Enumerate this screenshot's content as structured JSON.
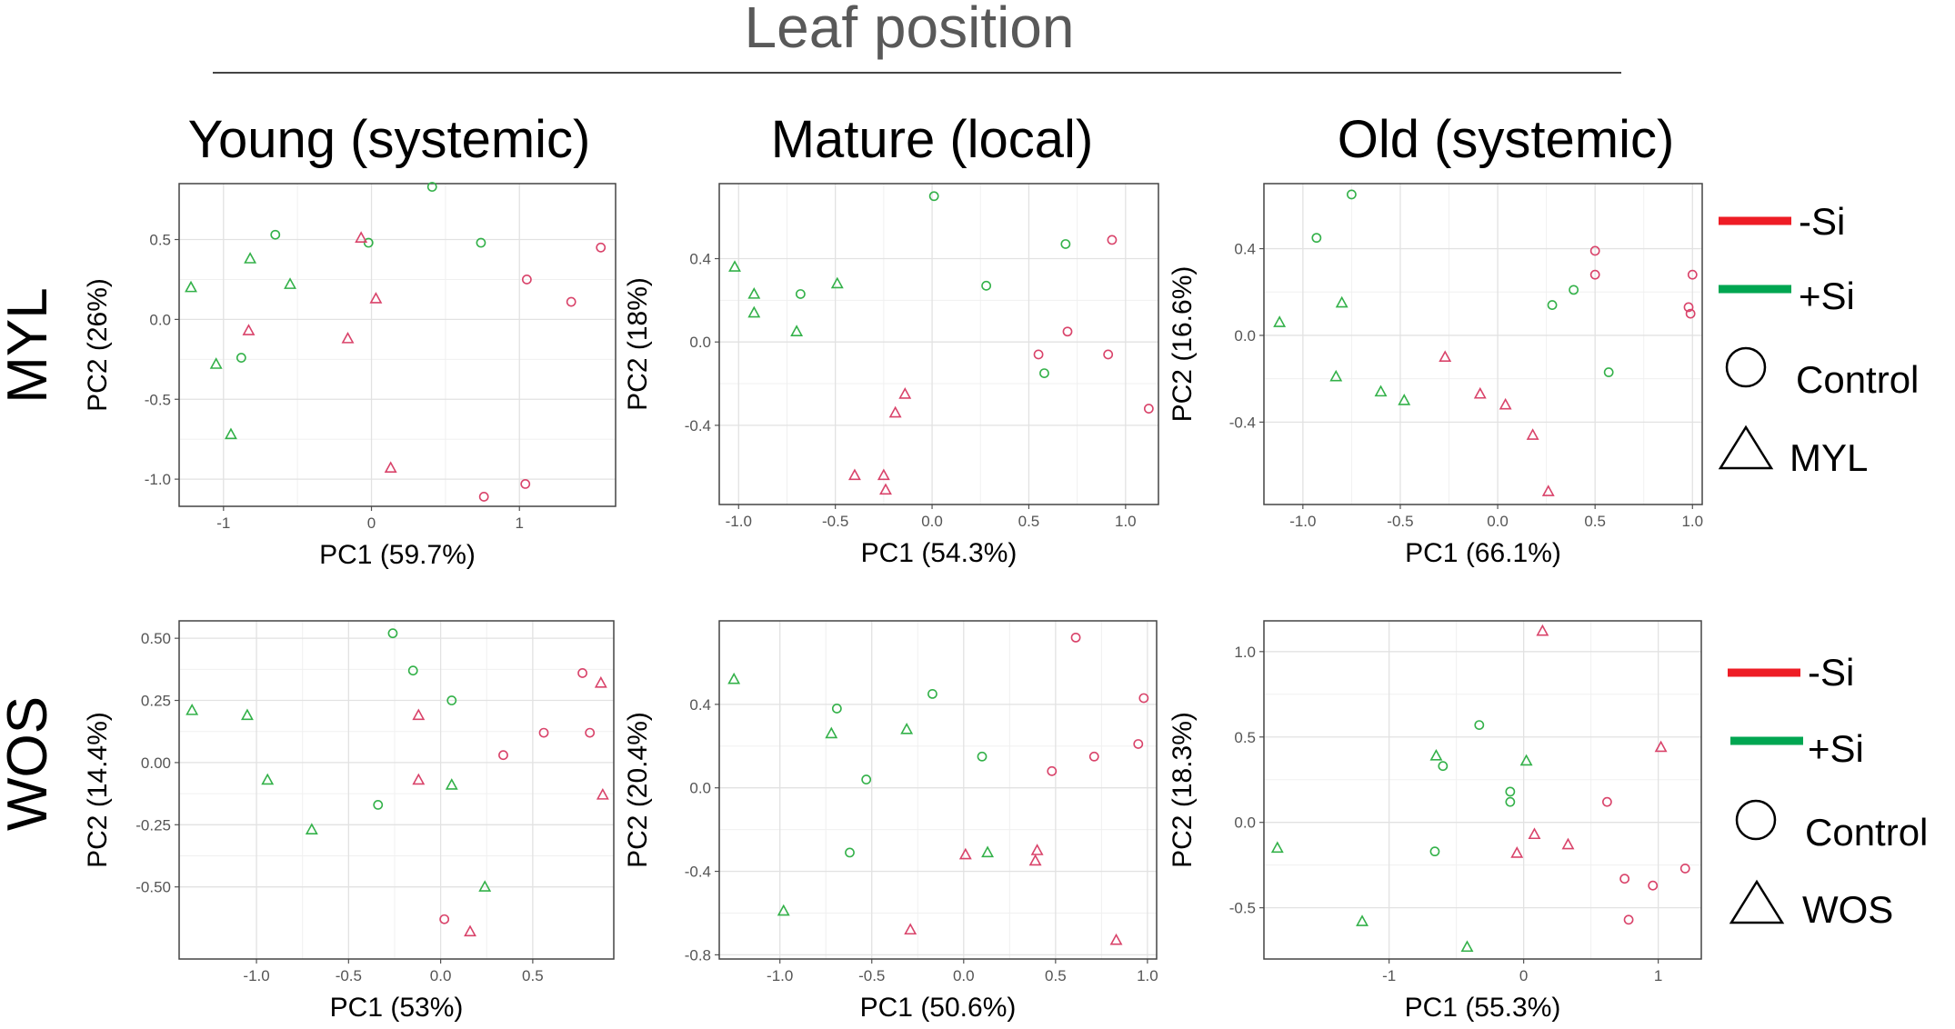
{
  "header": {
    "title": "Leaf position"
  },
  "columns": [
    "Young (systemic)",
    "Mature (local)",
    "Old (systemic)"
  ],
  "rows": [
    "MYL",
    "WOS"
  ],
  "colors": {
    "minus_si": "#d9436a",
    "plus_si": "#33b149",
    "legend_red": "#ee1c25",
    "legend_green": "#00a651",
    "title_gray": "#595959"
  },
  "legends": [
    {
      "minus_si": "-Si",
      "plus_si": "+Si",
      "circle_label": "Control",
      "triangle_label": "MYL"
    },
    {
      "minus_si": "-Si",
      "plus_si": "+Si",
      "circle_label": "Control",
      "triangle_label": "WOS"
    }
  ],
  "chart_data": [
    {
      "type": "scatter",
      "row": "MYL",
      "column": "Young (systemic)",
      "xlabel": "PC1 (59.7%)",
      "ylabel": "PC2 (26%)",
      "xlim": [
        -1.3,
        1.65
      ],
      "ylim": [
        -1.17,
        0.85
      ],
      "xticks": [
        -1,
        0,
        1
      ],
      "xticklabels": [
        "-1",
        "0",
        "1"
      ],
      "yticks": [
        -1.0,
        -0.5,
        0.0,
        0.5
      ],
      "yticklabels": [
        "-1.0",
        "-0.5",
        "0.0",
        "0.5"
      ],
      "points": [
        {
          "x": -1.22,
          "y": 0.2,
          "shape": "triangle",
          "treatment": "+Si"
        },
        {
          "x": -0.82,
          "y": 0.38,
          "shape": "triangle",
          "treatment": "+Si"
        },
        {
          "x": -0.65,
          "y": 0.53,
          "shape": "circle",
          "treatment": "+Si"
        },
        {
          "x": -0.55,
          "y": 0.22,
          "shape": "triangle",
          "treatment": "+Si"
        },
        {
          "x": -0.02,
          "y": 0.48,
          "shape": "circle",
          "treatment": "+Si"
        },
        {
          "x": 0.41,
          "y": 0.83,
          "shape": "circle",
          "treatment": "+Si"
        },
        {
          "x": 0.74,
          "y": 0.48,
          "shape": "circle",
          "treatment": "+Si"
        },
        {
          "x": -1.05,
          "y": -0.28,
          "shape": "triangle",
          "treatment": "+Si"
        },
        {
          "x": -0.88,
          "y": -0.24,
          "shape": "circle",
          "treatment": "+Si"
        },
        {
          "x": -0.95,
          "y": -0.72,
          "shape": "triangle",
          "treatment": "+Si"
        },
        {
          "x": -0.07,
          "y": 0.51,
          "shape": "triangle",
          "treatment": "-Si"
        },
        {
          "x": 0.03,
          "y": 0.13,
          "shape": "triangle",
          "treatment": "-Si"
        },
        {
          "x": -0.83,
          "y": -0.07,
          "shape": "triangle",
          "treatment": "-Si"
        },
        {
          "x": -0.16,
          "y": -0.12,
          "shape": "triangle",
          "treatment": "-Si"
        },
        {
          "x": 1.05,
          "y": 0.25,
          "shape": "circle",
          "treatment": "-Si"
        },
        {
          "x": 1.35,
          "y": 0.11,
          "shape": "circle",
          "treatment": "-Si"
        },
        {
          "x": 1.55,
          "y": 0.45,
          "shape": "circle",
          "treatment": "-Si"
        },
        {
          "x": 0.13,
          "y": -0.93,
          "shape": "triangle",
          "treatment": "-Si"
        },
        {
          "x": 0.76,
          "y": -1.11,
          "shape": "circle",
          "treatment": "-Si"
        },
        {
          "x": 1.04,
          "y": -1.03,
          "shape": "circle",
          "treatment": "-Si"
        }
      ]
    },
    {
      "type": "scatter",
      "row": "MYL",
      "column": "Mature (local)",
      "xlabel": "PC1 (54.3%)",
      "ylabel": "PC2 (18%)",
      "xlim": [
        -1.1,
        1.17
      ],
      "ylim": [
        -0.78,
        0.76
      ],
      "xticks": [
        -1.0,
        -0.5,
        0.0,
        0.5,
        1.0
      ],
      "xticklabels": [
        "-1.0",
        "-0.5",
        "0.0",
        "0.5",
        "1.0"
      ],
      "yticks": [
        -0.4,
        0.0,
        0.4
      ],
      "yticklabels": [
        "-0.4",
        "0.0",
        "0.4"
      ],
      "points": [
        {
          "x": -1.02,
          "y": 0.36,
          "shape": "triangle",
          "treatment": "+Si"
        },
        {
          "x": -0.92,
          "y": 0.23,
          "shape": "triangle",
          "treatment": "+Si"
        },
        {
          "x": -0.92,
          "y": 0.14,
          "shape": "triangle",
          "treatment": "+Si"
        },
        {
          "x": -0.68,
          "y": 0.23,
          "shape": "circle",
          "treatment": "+Si"
        },
        {
          "x": -0.7,
          "y": 0.05,
          "shape": "triangle",
          "treatment": "+Si"
        },
        {
          "x": -0.49,
          "y": 0.28,
          "shape": "triangle",
          "treatment": "+Si"
        },
        {
          "x": 0.01,
          "y": 0.7,
          "shape": "circle",
          "treatment": "+Si"
        },
        {
          "x": 0.28,
          "y": 0.27,
          "shape": "circle",
          "treatment": "+Si"
        },
        {
          "x": 0.69,
          "y": 0.47,
          "shape": "circle",
          "treatment": "+Si"
        },
        {
          "x": 0.58,
          "y": -0.15,
          "shape": "circle",
          "treatment": "+Si"
        },
        {
          "x": 0.93,
          "y": 0.49,
          "shape": "circle",
          "treatment": "-Si"
        },
        {
          "x": 0.7,
          "y": 0.05,
          "shape": "circle",
          "treatment": "-Si"
        },
        {
          "x": 0.55,
          "y": -0.06,
          "shape": "circle",
          "treatment": "-Si"
        },
        {
          "x": 0.91,
          "y": -0.06,
          "shape": "circle",
          "treatment": "-Si"
        },
        {
          "x": 1.12,
          "y": -0.32,
          "shape": "circle",
          "treatment": "-Si"
        },
        {
          "x": -0.14,
          "y": -0.25,
          "shape": "triangle",
          "treatment": "-Si"
        },
        {
          "x": -0.19,
          "y": -0.34,
          "shape": "triangle",
          "treatment": "-Si"
        },
        {
          "x": -0.4,
          "y": -0.64,
          "shape": "triangle",
          "treatment": "-Si"
        },
        {
          "x": -0.25,
          "y": -0.64,
          "shape": "triangle",
          "treatment": "-Si"
        },
        {
          "x": -0.24,
          "y": -0.71,
          "shape": "triangle",
          "treatment": "-Si"
        }
      ]
    },
    {
      "type": "scatter",
      "row": "MYL",
      "column": "Old (systemic)",
      "xlabel": "PC1 (66.1%)",
      "ylabel": "PC2 (16.6%)",
      "xlim": [
        -1.2,
        1.05
      ],
      "ylim": [
        -0.78,
        0.7
      ],
      "xticks": [
        -1.0,
        -0.5,
        0.0,
        0.5,
        1.0
      ],
      "xticklabels": [
        "-1.0",
        "-0.5",
        "0.0",
        "0.5",
        "1.0"
      ],
      "yticks": [
        -0.4,
        0.0,
        0.4
      ],
      "yticklabels": [
        "-0.4",
        "0.0",
        "0.4"
      ],
      "points": [
        {
          "x": -1.12,
          "y": 0.06,
          "shape": "triangle",
          "treatment": "+Si"
        },
        {
          "x": -0.93,
          "y": 0.45,
          "shape": "circle",
          "treatment": "+Si"
        },
        {
          "x": -0.75,
          "y": 0.65,
          "shape": "circle",
          "treatment": "+Si"
        },
        {
          "x": -0.8,
          "y": 0.15,
          "shape": "triangle",
          "treatment": "+Si"
        },
        {
          "x": -0.83,
          "y": -0.19,
          "shape": "triangle",
          "treatment": "+Si"
        },
        {
          "x": -0.6,
          "y": -0.26,
          "shape": "triangle",
          "treatment": "+Si"
        },
        {
          "x": -0.48,
          "y": -0.3,
          "shape": "triangle",
          "treatment": "+Si"
        },
        {
          "x": 0.28,
          "y": 0.14,
          "shape": "circle",
          "treatment": "+Si"
        },
        {
          "x": 0.39,
          "y": 0.21,
          "shape": "circle",
          "treatment": "+Si"
        },
        {
          "x": 0.57,
          "y": -0.17,
          "shape": "circle",
          "treatment": "+Si"
        },
        {
          "x": 0.5,
          "y": 0.39,
          "shape": "circle",
          "treatment": "-Si"
        },
        {
          "x": 0.5,
          "y": 0.28,
          "shape": "circle",
          "treatment": "-Si"
        },
        {
          "x": 1.0,
          "y": 0.28,
          "shape": "circle",
          "treatment": "-Si"
        },
        {
          "x": 0.98,
          "y": 0.13,
          "shape": "circle",
          "treatment": "-Si"
        },
        {
          "x": 0.99,
          "y": 0.1,
          "shape": "circle",
          "treatment": "-Si"
        },
        {
          "x": -0.27,
          "y": -0.1,
          "shape": "triangle",
          "treatment": "-Si"
        },
        {
          "x": -0.09,
          "y": -0.27,
          "shape": "triangle",
          "treatment": "-Si"
        },
        {
          "x": 0.04,
          "y": -0.32,
          "shape": "triangle",
          "treatment": "-Si"
        },
        {
          "x": 0.18,
          "y": -0.46,
          "shape": "triangle",
          "treatment": "-Si"
        },
        {
          "x": 0.26,
          "y": -0.72,
          "shape": "triangle",
          "treatment": "-Si"
        }
      ]
    },
    {
      "type": "scatter",
      "row": "WOS",
      "column": "Young (systemic)",
      "xlabel": "PC1 (53%)",
      "ylabel": "PC2 (14.4%)",
      "xlim": [
        -1.42,
        0.94
      ],
      "ylim": [
        -0.79,
        0.57
      ],
      "xticks": [
        -1.0,
        -0.5,
        0.0,
        0.5
      ],
      "xticklabels": [
        "-1.0",
        "-0.5",
        "0.0",
        "0.5"
      ],
      "yticks": [
        -0.5,
        -0.25,
        0.0,
        0.25,
        0.5
      ],
      "yticklabels": [
        "-0.50",
        "-0.25",
        "0.00",
        "0.25",
        "0.50"
      ],
      "points": [
        {
          "x": -1.35,
          "y": 0.21,
          "shape": "triangle",
          "treatment": "+Si"
        },
        {
          "x": -1.05,
          "y": 0.19,
          "shape": "triangle",
          "treatment": "+Si"
        },
        {
          "x": -0.94,
          "y": -0.07,
          "shape": "triangle",
          "treatment": "+Si"
        },
        {
          "x": -0.7,
          "y": -0.27,
          "shape": "triangle",
          "treatment": "+Si"
        },
        {
          "x": -0.26,
          "y": 0.52,
          "shape": "circle",
          "treatment": "+Si"
        },
        {
          "x": -0.15,
          "y": 0.37,
          "shape": "circle",
          "treatment": "+Si"
        },
        {
          "x": 0.06,
          "y": 0.25,
          "shape": "circle",
          "treatment": "+Si"
        },
        {
          "x": -0.34,
          "y": -0.17,
          "shape": "circle",
          "treatment": "+Si"
        },
        {
          "x": 0.06,
          "y": -0.09,
          "shape": "triangle",
          "treatment": "+Si"
        },
        {
          "x": 0.24,
          "y": -0.5,
          "shape": "triangle",
          "treatment": "+Si"
        },
        {
          "x": -0.12,
          "y": 0.19,
          "shape": "triangle",
          "treatment": "-Si"
        },
        {
          "x": -0.12,
          "y": -0.07,
          "shape": "triangle",
          "treatment": "-Si"
        },
        {
          "x": 0.34,
          "y": 0.03,
          "shape": "circle",
          "treatment": "-Si"
        },
        {
          "x": 0.56,
          "y": 0.12,
          "shape": "circle",
          "treatment": "-Si"
        },
        {
          "x": 0.77,
          "y": 0.36,
          "shape": "circle",
          "treatment": "-Si"
        },
        {
          "x": 0.87,
          "y": 0.32,
          "shape": "triangle",
          "treatment": "-Si"
        },
        {
          "x": 0.81,
          "y": 0.12,
          "shape": "circle",
          "treatment": "-Si"
        },
        {
          "x": 0.88,
          "y": -0.13,
          "shape": "triangle",
          "treatment": "-Si"
        },
        {
          "x": 0.02,
          "y": -0.63,
          "shape": "circle",
          "treatment": "-Si"
        },
        {
          "x": 0.16,
          "y": -0.68,
          "shape": "triangle",
          "treatment": "-Si"
        }
      ]
    },
    {
      "type": "scatter",
      "row": "WOS",
      "column": "Mature (local)",
      "xlabel": "PC1 (50.6%)",
      "ylabel": "PC2 (20.4%)",
      "xlim": [
        -1.33,
        1.05
      ],
      "ylim": [
        -0.82,
        0.8
      ],
      "xticks": [
        -1.0,
        -0.5,
        0.0,
        0.5,
        1.0
      ],
      "xticklabels": [
        "-1.0",
        "-0.5",
        "0.0",
        "0.5",
        "1.0"
      ],
      "yticks": [
        -0.8,
        -0.4,
        0.0,
        0.4
      ],
      "yticklabels": [
        "-0.8",
        "-0.4",
        "0.0",
        "0.4"
      ],
      "points": [
        {
          "x": -1.25,
          "y": 0.52,
          "shape": "triangle",
          "treatment": "+Si"
        },
        {
          "x": -0.69,
          "y": 0.38,
          "shape": "circle",
          "treatment": "+Si"
        },
        {
          "x": -0.72,
          "y": 0.26,
          "shape": "triangle",
          "treatment": "+Si"
        },
        {
          "x": -0.31,
          "y": 0.28,
          "shape": "triangle",
          "treatment": "+Si"
        },
        {
          "x": -0.17,
          "y": 0.45,
          "shape": "circle",
          "treatment": "+Si"
        },
        {
          "x": -0.53,
          "y": 0.04,
          "shape": "circle",
          "treatment": "+Si"
        },
        {
          "x": 0.1,
          "y": 0.15,
          "shape": "circle",
          "treatment": "+Si"
        },
        {
          "x": -0.62,
          "y": -0.31,
          "shape": "circle",
          "treatment": "+Si"
        },
        {
          "x": 0.13,
          "y": -0.31,
          "shape": "triangle",
          "treatment": "+Si"
        },
        {
          "x": -0.98,
          "y": -0.59,
          "shape": "triangle",
          "treatment": "+Si"
        },
        {
          "x": 0.61,
          "y": 0.72,
          "shape": "circle",
          "treatment": "-Si"
        },
        {
          "x": 0.98,
          "y": 0.43,
          "shape": "circle",
          "treatment": "-Si"
        },
        {
          "x": 0.95,
          "y": 0.21,
          "shape": "circle",
          "treatment": "-Si"
        },
        {
          "x": 0.71,
          "y": 0.15,
          "shape": "circle",
          "treatment": "-Si"
        },
        {
          "x": 0.48,
          "y": 0.08,
          "shape": "circle",
          "treatment": "-Si"
        },
        {
          "x": 0.01,
          "y": -0.32,
          "shape": "triangle",
          "treatment": "-Si"
        },
        {
          "x": 0.4,
          "y": -0.3,
          "shape": "triangle",
          "treatment": "-Si"
        },
        {
          "x": 0.39,
          "y": -0.35,
          "shape": "triangle",
          "treatment": "-Si"
        },
        {
          "x": -0.29,
          "y": -0.68,
          "shape": "triangle",
          "treatment": "-Si"
        },
        {
          "x": 0.83,
          "y": -0.73,
          "shape": "triangle",
          "treatment": "-Si"
        }
      ]
    },
    {
      "type": "scatter",
      "row": "WOS",
      "column": "Old (systemic)",
      "xlabel": "PC1 (55.3%)",
      "ylabel": "PC2 (18.3%)",
      "xlim": [
        -1.93,
        1.32
      ],
      "ylim": [
        -0.8,
        1.18
      ],
      "xticks": [
        -1,
        0,
        1
      ],
      "xticklabels": [
        "-1",
        "0",
        "1"
      ],
      "yticks": [
        -0.5,
        0.0,
        0.5,
        1.0
      ],
      "yticklabels": [
        "-0.5",
        "0.0",
        "0.5",
        "1.0"
      ],
      "points": [
        {
          "x": -1.83,
          "y": -0.15,
          "shape": "triangle",
          "treatment": "+Si"
        },
        {
          "x": -1.2,
          "y": -0.58,
          "shape": "triangle",
          "treatment": "+Si"
        },
        {
          "x": -0.42,
          "y": -0.73,
          "shape": "triangle",
          "treatment": "+Si"
        },
        {
          "x": -0.65,
          "y": 0.39,
          "shape": "triangle",
          "treatment": "+Si"
        },
        {
          "x": -0.6,
          "y": 0.33,
          "shape": "circle",
          "treatment": "+Si"
        },
        {
          "x": -0.33,
          "y": 0.57,
          "shape": "circle",
          "treatment": "+Si"
        },
        {
          "x": -0.1,
          "y": 0.18,
          "shape": "circle",
          "treatment": "+Si"
        },
        {
          "x": -0.1,
          "y": 0.12,
          "shape": "circle",
          "treatment": "+Si"
        },
        {
          "x": 0.02,
          "y": 0.36,
          "shape": "triangle",
          "treatment": "+Si"
        },
        {
          "x": -0.66,
          "y": -0.17,
          "shape": "circle",
          "treatment": "+Si"
        },
        {
          "x": 0.14,
          "y": 1.12,
          "shape": "triangle",
          "treatment": "-Si"
        },
        {
          "x": 1.02,
          "y": 0.44,
          "shape": "triangle",
          "treatment": "-Si"
        },
        {
          "x": 0.62,
          "y": 0.12,
          "shape": "circle",
          "treatment": "-Si"
        },
        {
          "x": 0.08,
          "y": -0.07,
          "shape": "triangle",
          "treatment": "-Si"
        },
        {
          "x": -0.05,
          "y": -0.18,
          "shape": "triangle",
          "treatment": "-Si"
        },
        {
          "x": 0.33,
          "y": -0.13,
          "shape": "triangle",
          "treatment": "-Si"
        },
        {
          "x": 0.75,
          "y": -0.33,
          "shape": "circle",
          "treatment": "-Si"
        },
        {
          "x": 0.96,
          "y": -0.37,
          "shape": "circle",
          "treatment": "-Si"
        },
        {
          "x": 1.2,
          "y": -0.27,
          "shape": "circle",
          "treatment": "-Si"
        },
        {
          "x": 0.78,
          "y": -0.57,
          "shape": "circle",
          "treatment": "-Si"
        }
      ]
    }
  ]
}
